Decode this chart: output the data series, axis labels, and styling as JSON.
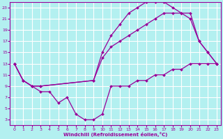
{
  "title": "",
  "xlabel": "Windchill (Refroidissement éolien,°C)",
  "ylabel": "",
  "bg_color": "#b3f0f0",
  "grid_color": "#ffffff",
  "line_color": "#990099",
  "xlim": [
    -0.5,
    23.5
  ],
  "ylim": [
    2,
    24
  ],
  "xticks": [
    0,
    1,
    2,
    3,
    4,
    5,
    6,
    7,
    8,
    9,
    10,
    11,
    12,
    13,
    14,
    15,
    16,
    17,
    18,
    19,
    20,
    21,
    22,
    23
  ],
  "yticks": [
    3,
    5,
    7,
    9,
    11,
    13,
    15,
    17,
    19,
    21,
    23
  ],
  "lines": [
    {
      "x": [
        0,
        1,
        2,
        3,
        9,
        10,
        11,
        12,
        13,
        14,
        15,
        16,
        17,
        18,
        19,
        20,
        21,
        22,
        23
      ],
      "y": [
        13,
        10,
        9,
        9,
        10,
        15,
        18,
        20,
        22,
        23,
        24,
        24,
        24,
        23,
        22,
        21,
        17,
        15,
        13
      ]
    },
    {
      "x": [
        0,
        1,
        2,
        3,
        9,
        10,
        11,
        12,
        13,
        14,
        15,
        16,
        17,
        18,
        19,
        20,
        21,
        22,
        23
      ],
      "y": [
        13,
        10,
        9,
        9,
        10,
        14,
        16,
        17,
        18,
        19,
        20,
        21,
        22,
        22,
        22,
        22,
        17,
        15,
        13
      ]
    },
    {
      "x": [
        0,
        1,
        2,
        3,
        4,
        5,
        6,
        7,
        8,
        9,
        10,
        11,
        12,
        13,
        14,
        15,
        16,
        17,
        18,
        19,
        20,
        21,
        22,
        23
      ],
      "y": [
        13,
        10,
        9,
        8,
        8,
        6,
        7,
        4,
        3,
        3,
        4,
        9,
        9,
        9,
        10,
        10,
        11,
        11,
        12,
        12,
        13,
        13,
        13,
        13
      ]
    }
  ]
}
